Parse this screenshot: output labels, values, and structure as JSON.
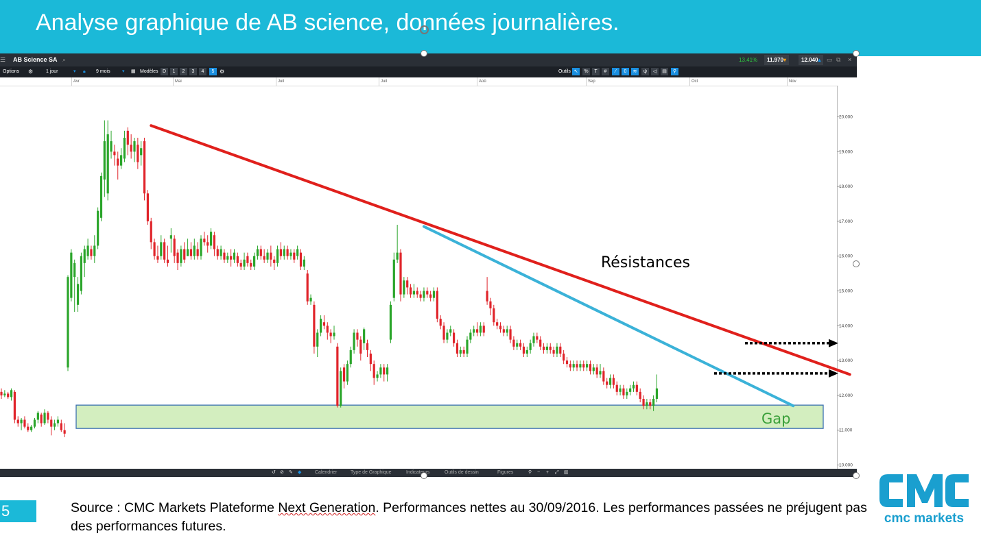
{
  "slide": {
    "title": "Analyse graphique de AB science, données journalières.",
    "number": "5",
    "source_parts": [
      "Source : CMC Markets Plateforme ",
      "Next Generation",
      ". Performances nettes au 30/09/2016. Les performances passées ne préjugent pas des performances futures."
    ]
  },
  "platform": {
    "instrument": "AB Science SA",
    "change_pct": "13.41%",
    "bid": "11.970",
    "ask": "12.040",
    "options_label": "Options",
    "period": "1 jour",
    "range": "9 mois",
    "models_label": "Modèles",
    "draw_modes": [
      "D",
      "1",
      "2",
      "3",
      "4",
      "5"
    ],
    "tools_label": "Outils",
    "bottom_items": [
      "Calendrier",
      "Type de Graphique",
      "Indicateurs",
      "Outils de dessin",
      "Figures"
    ],
    "colors": {
      "up": "#2aa52a",
      "down": "#e0242a",
      "positive": "#2ecc40",
      "accent": "#1a8fe0"
    }
  },
  "logo": {
    "mark": "CMC",
    "name": "cmc markets",
    "color": "#1a9fcf"
  },
  "chart_data": {
    "type": "candlestick",
    "title": "",
    "xlabel": "",
    "ylabel": "",
    "x_months": [
      "Avr",
      "Mai",
      "Juil",
      "Juil",
      "Aoû",
      "Sep",
      "Oct",
      "Nov"
    ],
    "y_ticks": [
      "10.000",
      "11.000",
      "12.000",
      "13.000",
      "14.000",
      "15.000",
      "16.000",
      "17.000",
      "18.000",
      "19.000",
      "20.000"
    ],
    "ylim": [
      10,
      20.2
    ],
    "annotations": [
      {
        "label": "Résistances",
        "color": "#000000"
      },
      {
        "label": "Gap",
        "color": "#3aa03a"
      }
    ],
    "trendlines": [
      {
        "name": "",
        "color": "#e0201c",
        "from": {
          "index": 45,
          "value": 19.75
        },
        "to": {
          "index": 255,
          "value": 12.6
        }
      },
      {
        "name": "",
        "color": "#3bb2d8",
        "from": {
          "index": 127,
          "value": 16.85
        },
        "to": {
          "index": 238,
          "value": 11.7
        }
      }
    ],
    "gap_zone": {
      "from_value": 11.05,
      "to_value": 11.72,
      "color": "#d3eebf"
    },
    "projection_arrows": [
      {
        "value": 13.5
      },
      {
        "value": 12.63
      }
    ],
    "candles": [
      [
        12.1,
        12.0,
        12.2,
        11.9
      ],
      [
        12.0,
        12.05,
        12.15,
        11.95
      ],
      [
        12.05,
        11.95,
        12.1,
        11.9
      ],
      [
        11.95,
        12.15,
        12.2,
        11.85
      ],
      [
        12.1,
        11.3,
        12.15,
        11.2
      ],
      [
        11.3,
        11.2,
        11.4,
        11.1
      ],
      [
        11.2,
        11.3,
        11.35,
        11.0
      ],
      [
        11.3,
        11.1,
        11.4,
        11.05
      ],
      [
        11.1,
        11.0,
        11.2,
        10.95
      ],
      [
        11.0,
        11.1,
        11.15,
        10.95
      ],
      [
        11.1,
        11.3,
        11.35,
        11.05
      ],
      [
        11.3,
        11.5,
        11.55,
        11.2
      ],
      [
        11.45,
        11.2,
        11.5,
        11.1
      ],
      [
        11.2,
        11.5,
        11.6,
        11.15
      ],
      [
        11.5,
        11.3,
        11.55,
        11.2
      ],
      [
        11.3,
        11.1,
        11.4,
        10.85
      ],
      [
        11.1,
        11.2,
        11.3,
        11.0
      ],
      [
        11.2,
        11.3,
        11.4,
        11.1
      ],
      [
        11.2,
        11.0,
        11.3,
        10.95
      ],
      [
        11.0,
        10.9,
        11.2,
        10.8
      ],
      [
        12.8,
        15.4,
        15.45,
        12.7
      ],
      [
        14.8,
        16.1,
        16.2,
        14.7
      ],
      [
        15.4,
        15.8,
        15.9,
        14.4
      ],
      [
        14.6,
        15.2,
        15.4,
        14.4
      ],
      [
        15.0,
        16.0,
        16.1,
        14.9
      ],
      [
        15.8,
        16.2,
        16.3,
        15.4
      ],
      [
        16.0,
        16.3,
        16.5,
        15.9
      ],
      [
        16.2,
        16.0,
        16.3,
        15.9
      ],
      [
        16.0,
        16.3,
        16.6,
        15.8
      ],
      [
        16.3,
        17.3,
        17.4,
        16.2
      ],
      [
        17.1,
        18.3,
        18.4,
        17.0
      ],
      [
        18.2,
        19.3,
        19.9,
        17.7
      ],
      [
        17.8,
        19.5,
        19.9,
        17.6
      ],
      [
        19.0,
        19.3,
        19.6,
        18.8
      ],
      [
        19.0,
        18.9,
        19.2,
        18.6
      ],
      [
        18.8,
        18.6,
        19.0,
        18.2
      ],
      [
        18.6,
        18.9,
        19.1,
        18.5
      ],
      [
        18.8,
        19.4,
        19.6,
        18.7
      ],
      [
        19.6,
        19.2,
        19.7,
        18.9
      ],
      [
        19.2,
        19.0,
        19.5,
        18.8
      ],
      [
        19.0,
        19.3,
        19.4,
        18.7
      ],
      [
        19.2,
        18.7,
        19.4,
        18.5
      ],
      [
        18.9,
        19.1,
        19.3,
        18.6
      ],
      [
        19.3,
        17.8,
        19.4,
        17.6
      ],
      [
        17.8,
        17.0,
        17.9,
        16.9
      ],
      [
        17.0,
        16.4,
        17.1,
        16.2
      ],
      [
        16.4,
        16.0,
        16.5,
        15.9
      ],
      [
        16.0,
        15.9,
        16.3,
        15.8
      ],
      [
        16.0,
        16.4,
        16.6,
        15.9
      ],
      [
        16.4,
        15.9,
        16.5,
        15.8
      ],
      [
        15.9,
        15.8,
        16.3,
        15.7
      ],
      [
        16.5,
        16.6,
        16.8,
        16.1
      ],
      [
        16.5,
        16.0,
        16.6,
        15.8
      ],
      [
        16.1,
        15.8,
        16.2,
        15.6
      ],
      [
        15.8,
        16.2,
        16.3,
        15.7
      ],
      [
        16.2,
        15.9,
        16.4,
        15.8
      ],
      [
        16.0,
        16.2,
        16.5,
        16.0
      ],
      [
        16.2,
        16.0,
        16.4,
        15.9
      ],
      [
        16.0,
        16.3,
        16.5,
        15.9
      ],
      [
        16.2,
        16.0,
        16.4,
        15.9
      ],
      [
        16.0,
        16.5,
        16.6,
        15.9
      ],
      [
        16.5,
        16.4,
        16.7,
        16.3
      ],
      [
        16.4,
        16.3,
        16.6,
        16.1
      ],
      [
        16.3,
        16.7,
        16.8,
        16.2
      ],
      [
        16.6,
        16.2,
        16.7,
        16.0
      ],
      [
        16.2,
        16.0,
        16.3,
        15.9
      ],
      [
        16.0,
        16.2,
        16.3,
        15.9
      ],
      [
        16.1,
        15.9,
        16.2,
        15.8
      ],
      [
        15.9,
        16.0,
        16.1,
        15.8
      ],
      [
        16.0,
        15.9,
        16.2,
        15.7
      ],
      [
        15.9,
        16.1,
        16.2,
        15.8
      ],
      [
        16.0,
        15.8,
        16.1,
        15.7
      ],
      [
        15.8,
        15.7,
        15.9,
        15.6
      ],
      [
        15.7,
        15.9,
        16.1,
        15.6
      ],
      [
        16.0,
        15.8,
        16.1,
        15.7
      ],
      [
        15.8,
        15.7,
        15.9,
        15.6
      ],
      [
        15.7,
        16.0,
        16.1,
        15.6
      ],
      [
        16.0,
        16.2,
        16.3,
        15.9
      ],
      [
        16.2,
        16.0,
        16.3,
        15.9
      ],
      [
        16.0,
        15.9,
        16.2,
        15.8
      ],
      [
        15.9,
        16.1,
        16.2,
        15.8
      ],
      [
        16.1,
        15.9,
        16.3,
        15.7
      ],
      [
        15.9,
        15.8,
        16.0,
        15.6
      ],
      [
        15.8,
        16.2,
        16.3,
        15.7
      ],
      [
        16.2,
        16.0,
        16.4,
        15.9
      ],
      [
        16.0,
        16.2,
        16.3,
        15.9
      ],
      [
        16.2,
        16.0,
        16.3,
        15.9
      ],
      [
        16.0,
        16.1,
        16.2,
        15.9
      ],
      [
        16.1,
        15.9,
        16.2,
        15.8
      ],
      [
        16.0,
        16.2,
        16.3,
        15.9
      ],
      [
        16.1,
        15.7,
        16.2,
        15.6
      ],
      [
        15.7,
        15.9,
        16.0,
        15.6
      ],
      [
        15.5,
        14.7,
        15.6,
        14.6
      ],
      [
        14.7,
        14.8,
        14.9,
        14.6
      ],
      [
        14.6,
        13.4,
        14.7,
        13.2
      ],
      [
        13.4,
        13.8,
        13.9,
        13.1
      ],
      [
        13.8,
        14.2,
        14.3,
        13.7
      ],
      [
        14.1,
        14.0,
        14.3,
        13.9
      ],
      [
        14.0,
        13.8,
        14.1,
        13.6
      ],
      [
        13.8,
        13.7,
        13.9,
        13.5
      ],
      [
        13.7,
        13.8,
        14.0,
        13.6
      ],
      [
        13.4,
        11.7,
        13.5,
        11.65
      ],
      [
        11.7,
        12.7,
        12.8,
        11.65
      ],
      [
        12.8,
        12.4,
        12.9,
        12.2
      ],
      [
        12.4,
        12.9,
        13.0,
        12.3
      ],
      [
        12.9,
        13.3,
        13.4,
        12.8
      ],
      [
        13.3,
        13.8,
        13.9,
        13.2
      ],
      [
        13.8,
        13.6,
        13.9,
        13.4
      ],
      [
        13.6,
        13.2,
        13.7,
        13.0
      ],
      [
        13.5,
        13.9,
        13.95,
        13.3
      ],
      [
        13.5,
        13.3,
        13.6,
        13.1
      ],
      [
        13.2,
        12.9,
        13.3,
        12.7
      ],
      [
        12.9,
        12.5,
        13.0,
        12.3
      ],
      [
        12.5,
        12.6,
        12.7,
        12.4
      ],
      [
        12.6,
        12.8,
        12.9,
        12.5
      ],
      [
        12.8,
        12.6,
        12.9,
        12.4
      ],
      [
        12.6,
        12.8,
        12.9,
        12.4
      ],
      [
        13.6,
        14.6,
        14.7,
        13.5
      ],
      [
        14.8,
        15.9,
        16.1,
        14.7
      ],
      [
        15.9,
        16.1,
        16.9,
        15.8
      ],
      [
        16.1,
        14.9,
        16.2,
        14.7
      ],
      [
        14.9,
        15.3,
        15.4,
        14.8
      ],
      [
        15.3,
        15.1,
        15.4,
        14.9
      ],
      [
        15.1,
        14.9,
        15.2,
        14.8
      ],
      [
        14.9,
        15.0,
        15.2,
        14.8
      ],
      [
        15.0,
        14.9,
        15.1,
        14.8
      ],
      [
        14.9,
        14.8,
        15.0,
        14.7
      ],
      [
        14.8,
        15.0,
        15.1,
        14.7
      ],
      [
        15.0,
        14.9,
        15.1,
        14.8
      ],
      [
        14.9,
        14.8,
        15.0,
        14.7
      ],
      [
        14.8,
        15.0,
        15.1,
        14.7
      ],
      [
        15.0,
        14.2,
        15.1,
        14.1
      ],
      [
        14.2,
        14.0,
        14.3,
        13.9
      ],
      [
        14.0,
        13.6,
        14.1,
        13.5
      ],
      [
        13.6,
        13.8,
        13.9,
        13.5
      ],
      [
        13.8,
        13.9,
        14.0,
        13.7
      ],
      [
        13.8,
        13.5,
        13.9,
        13.4
      ],
      [
        13.5,
        13.2,
        13.6,
        13.1
      ],
      [
        13.2,
        13.3,
        13.4,
        13.1
      ],
      [
        13.3,
        13.2,
        13.4,
        13.1
      ],
      [
        13.2,
        13.6,
        13.7,
        13.1
      ],
      [
        13.6,
        13.8,
        13.9,
        13.5
      ],
      [
        13.8,
        13.9,
        14.0,
        13.7
      ],
      [
        13.9,
        13.8,
        14.1,
        13.7
      ],
      [
        13.8,
        14.0,
        14.1,
        13.7
      ],
      [
        14.0,
        13.8,
        14.1,
        13.7
      ],
      [
        15.0,
        14.7,
        15.4,
        14.6
      ],
      [
        14.7,
        14.5,
        14.8,
        14.3
      ],
      [
        14.5,
        14.1,
        14.6,
        14.0
      ],
      [
        14.1,
        14.0,
        14.2,
        13.9
      ],
      [
        14.0,
        13.9,
        14.1,
        13.8
      ],
      [
        13.9,
        13.8,
        14.0,
        13.7
      ],
      [
        13.8,
        13.9,
        14.0,
        13.7
      ],
      [
        13.9,
        13.6,
        14.0,
        13.5
      ],
      [
        13.6,
        13.4,
        13.7,
        13.3
      ],
      [
        13.4,
        13.5,
        13.6,
        13.3
      ],
      [
        13.5,
        13.4,
        13.6,
        13.3
      ],
      [
        13.4,
        13.2,
        13.5,
        13.1
      ],
      [
        13.2,
        13.3,
        13.4,
        13.1
      ],
      [
        13.3,
        13.5,
        13.6,
        13.2
      ],
      [
        13.5,
        13.7,
        13.8,
        13.4
      ],
      [
        13.7,
        13.6,
        13.8,
        13.5
      ],
      [
        13.6,
        13.4,
        13.7,
        13.3
      ],
      [
        13.4,
        13.3,
        13.5,
        13.2
      ],
      [
        13.3,
        13.4,
        13.5,
        13.2
      ],
      [
        13.4,
        13.3,
        13.5,
        13.2
      ],
      [
        13.3,
        13.2,
        13.4,
        13.1
      ],
      [
        13.2,
        13.4,
        13.5,
        13.1
      ],
      [
        13.4,
        13.2,
        13.5,
        13.1
      ],
      [
        13.2,
        13.0,
        13.3,
        12.9
      ],
      [
        13.0,
        12.9,
        13.1,
        12.8
      ],
      [
        12.9,
        12.8,
        13.0,
        12.7
      ],
      [
        12.8,
        12.9,
        13.0,
        12.7
      ],
      [
        12.9,
        12.8,
        13.0,
        12.7
      ],
      [
        12.8,
        12.9,
        13.0,
        12.7
      ],
      [
        12.9,
        12.8,
        13.0,
        12.7
      ],
      [
        12.8,
        12.9,
        13.0,
        12.7
      ],
      [
        12.9,
        12.7,
        13.0,
        12.6
      ],
      [
        12.7,
        12.8,
        12.9,
        12.6
      ],
      [
        12.8,
        12.6,
        12.9,
        12.5
      ],
      [
        12.6,
        12.7,
        12.9,
        12.5
      ],
      [
        12.7,
        12.4,
        12.8,
        12.3
      ],
      [
        12.4,
        12.3,
        12.5,
        12.2
      ],
      [
        12.3,
        12.5,
        12.6,
        12.2
      ],
      [
        12.5,
        12.3,
        12.6,
        12.2
      ],
      [
        12.3,
        12.1,
        12.4,
        12.0
      ],
      [
        12.1,
        12.2,
        12.3,
        12.0
      ],
      [
        12.2,
        12.0,
        12.3,
        11.9
      ],
      [
        12.0,
        12.1,
        12.2,
        11.9
      ],
      [
        12.1,
        12.2,
        12.3,
        12.0
      ],
      [
        12.2,
        12.3,
        12.4,
        12.1
      ],
      [
        12.3,
        12.1,
        12.4,
        12.0
      ],
      [
        12.1,
        11.9,
        12.2,
        11.8
      ],
      [
        11.9,
        11.7,
        12.0,
        11.6
      ],
      [
        11.7,
        11.8,
        11.9,
        11.6
      ],
      [
        11.8,
        11.7,
        11.9,
        11.6
      ],
      [
        11.7,
        11.9,
        12.0,
        11.55
      ],
      [
        11.9,
        12.2,
        12.6,
        11.8
      ]
    ]
  }
}
